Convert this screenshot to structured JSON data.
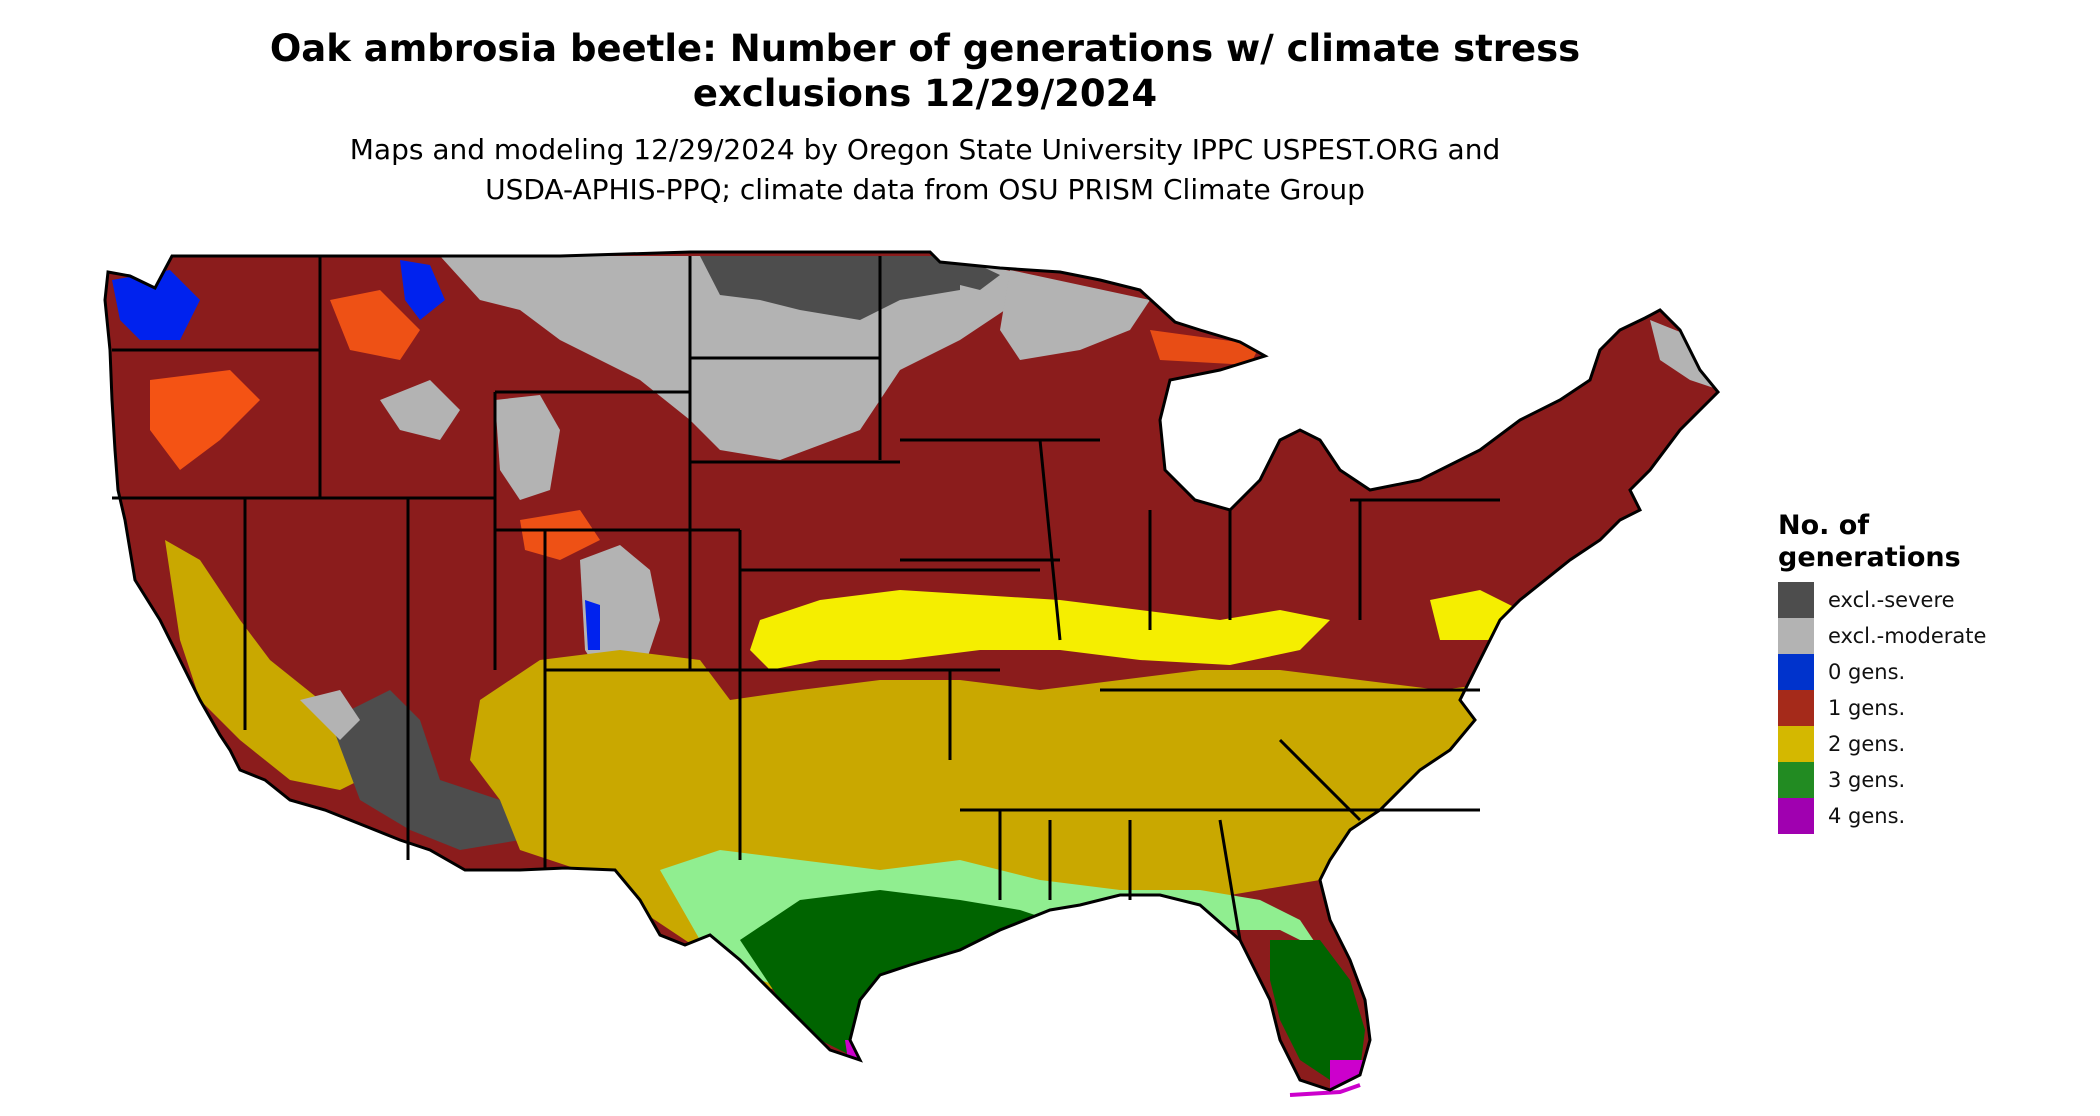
{
  "header": {
    "title_line1": "Oak ambrosia beetle: Number of generations w/ climate stress",
    "title_line2": "exclusions 12/29/2024",
    "subtitle_line1": "Maps and modeling 12/29/2024 by Oregon State University IPPC USPEST.ORG and",
    "subtitle_line2": "USDA-APHIS-PPQ; climate data from OSU PRISM Climate Group"
  },
  "legend": {
    "title_line1": "No. of",
    "title_line2": "generations",
    "items": [
      {
        "label": "excl.-severe",
        "color": "#4d4d4d"
      },
      {
        "label": "excl.-moderate",
        "color": "#b3b3b3"
      },
      {
        "label": "0 gens.",
        "color": "#0033cc"
      },
      {
        "label": "1 gens.",
        "color": "#a52a1a"
      },
      {
        "label": "2 gens.",
        "color": "#d4b800"
      },
      {
        "label": "3 gens.",
        "color": "#228b22"
      },
      {
        "label": "4 gens.",
        "color": "#a000b0"
      }
    ]
  },
  "map_colors": {
    "one_gen_dark": "#8b1c1c",
    "orange_zone": "#ff5a14",
    "two_gen_mustard": "#c9a800",
    "two_gen_yellow": "#f5ee00",
    "three_gen_light": "#90ee90",
    "three_gen_dark": "#006400",
    "four_gen": "#cc00cc",
    "excl_moderate": "#b3b3b3",
    "excl_severe": "#4d4d4d",
    "zero_gen": "#0022ee"
  }
}
